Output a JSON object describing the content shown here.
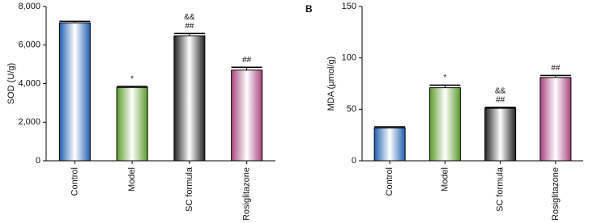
{
  "chart_data": [
    {
      "type": "bar",
      "y_label": "SOD (U/g)",
      "categories": [
        "Control",
        "Model",
        "SC formula",
        "Rosiglitazone"
      ],
      "values": [
        7150,
        3800,
        6480,
        4700
      ],
      "errors": [
        80,
        60,
        120,
        150
      ],
      "colors": [
        "#1f5fb0",
        "#5a9a2a",
        "#222222",
        "#a8447e"
      ],
      "annotations": [
        [],
        [
          "*"
        ],
        [
          "&&",
          "##"
        ],
        [
          "##"
        ]
      ],
      "ylim": [
        0,
        8000
      ],
      "yticks": [
        0,
        {
          "value": 2000,
          "label": "2,000"
        },
        {
          "value": 4000,
          "label": "4,000"
        },
        {
          "value": 6000,
          "label": "6,000"
        },
        {
          "value": 8000,
          "label": "8,000"
        }
      ]
    },
    {
      "type": "bar",
      "panel": "B",
      "y_label": "MDA (μmol/g)",
      "categories": [
        "Control",
        "Model",
        "SC formula",
        "Rosiglitazone"
      ],
      "values": [
        32,
        71,
        51,
        81
      ],
      "errors": [
        1,
        2.5,
        1,
        2
      ],
      "colors": [
        "#1f5fb0",
        "#5a9a2a",
        "#222222",
        "#a8447e"
      ],
      "annotations": [
        [],
        [
          "*"
        ],
        [
          "&&",
          "##"
        ],
        [
          "##"
        ]
      ],
      "ylim": [
        0,
        150
      ],
      "yticks": [
        0,
        50,
        100,
        150
      ]
    }
  ]
}
